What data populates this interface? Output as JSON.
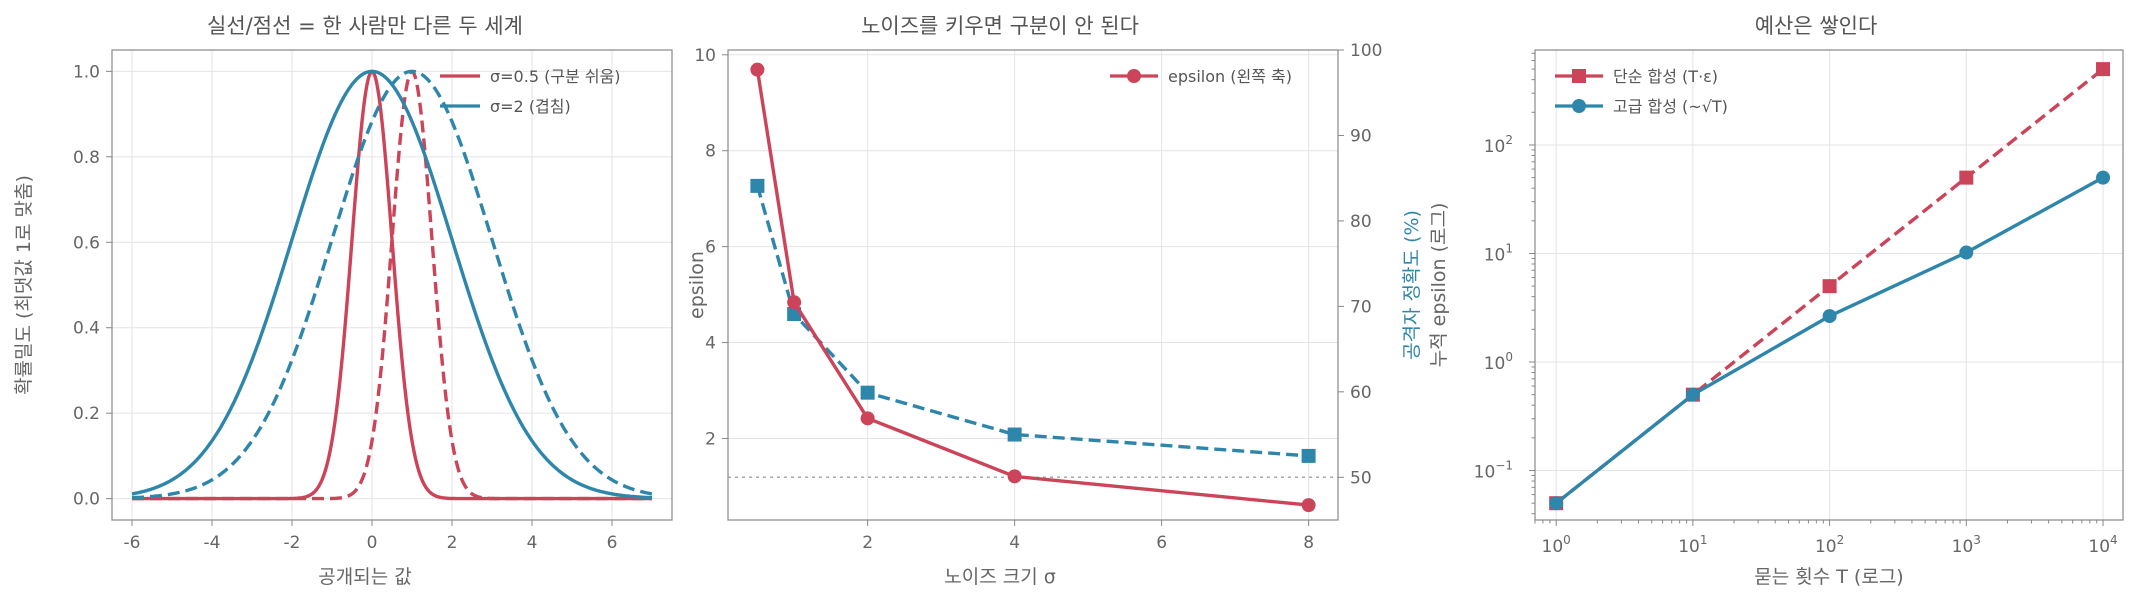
{
  "colors": {
    "red": "#cc4459",
    "blue": "#2e86ab",
    "grid": "#e4e4e4",
    "axis": "#888888",
    "text": "#666666"
  },
  "chart_data": [
    {
      "type": "line",
      "title": "실선/점선 = 한 사람만 다른 두 세계",
      "xlabel": "공개되는 값",
      "ylabel": "확률밀도 (최댓값 1로 맞춤)",
      "xlim": [
        -6.5,
        7.5
      ],
      "ylim": [
        -0.05,
        1.05
      ],
      "xticks": [
        -6,
        -4,
        -2,
        0,
        2,
        4,
        6
      ],
      "xtick_labels": [
        "-6",
        "-4",
        "-2",
        "0",
        "2",
        "4",
        "6"
      ],
      "yticks": [
        0.0,
        0.2,
        0.4,
        0.6,
        0.8,
        1.0
      ],
      "ytick_labels": [
        "0.0",
        "0.2",
        "0.4",
        "0.6",
        "0.8",
        "1.0"
      ],
      "grid": true,
      "legend_position": "top-right",
      "legend": [
        "σ=0.5 (구분 쉬움)",
        "σ=2 (겹침)"
      ],
      "curve_domain": [
        -6,
        7
      ],
      "series": [
        {
          "name": "σ=0.5 (구분 쉬움)",
          "sigma": 0.5,
          "mean": 0,
          "style": "solid",
          "color": "#cc4459"
        },
        {
          "sigma": 0.5,
          "mean": 1,
          "style": "dashed",
          "color": "#cc4459"
        },
        {
          "name": "σ=2 (겹침)",
          "sigma": 2,
          "mean": 0,
          "style": "solid",
          "color": "#2e86ab"
        },
        {
          "sigma": 2,
          "mean": 1,
          "style": "dashed",
          "color": "#2e86ab"
        }
      ]
    },
    {
      "type": "line",
      "title": "노이즈를 키우면 구분이 안 된다",
      "xlabel": "노이즈 크기 σ",
      "ylabel": "epsilon",
      "ylabel_right": "공격자 정확도 (%)",
      "xlim": [
        0.1,
        8.4
      ],
      "ylim": [
        0.3,
        10.1
      ],
      "ylim_right": [
        45,
        100
      ],
      "xticks": [
        2,
        4,
        6,
        8
      ],
      "xtick_labels": [
        "2",
        "4",
        "6",
        "8"
      ],
      "yticks": [
        2,
        4,
        6,
        8,
        10
      ],
      "ytick_labels": [
        "2",
        "4",
        "6",
        "8",
        "10"
      ],
      "yticks_right": [
        50,
        60,
        70,
        80,
        90,
        100
      ],
      "ytick_right_labels": [
        "50",
        "60",
        "70",
        "80",
        "90",
        "100"
      ],
      "grid": true,
      "legend_position": "top-right",
      "legend": [
        "epsilon (왼쪽 축)"
      ],
      "reference_line_right": 50,
      "series": [
        {
          "name": "epsilon (왼쪽 축)",
          "axis": "left",
          "x": [
            0.5,
            1,
            2,
            4,
            8
          ],
          "y": [
            9.69,
            4.84,
            2.42,
            1.21,
            0.61
          ],
          "style": "solid",
          "marker": "circle",
          "color": "#cc4459"
        },
        {
          "axis": "right",
          "x": [
            0.5,
            1,
            2,
            4,
            8
          ],
          "y": [
            84.1,
            69.1,
            59.9,
            55.0,
            52.5
          ],
          "style": "dashed",
          "marker": "square",
          "color": "#2e86ab"
        }
      ]
    },
    {
      "type": "line",
      "title": "예산은 쌓인다",
      "xlabel": "묻는 횟수 T (로그)",
      "ylabel": "누적 epsilon (로그)",
      "xscale": "log",
      "yscale": "log",
      "xlim": [
        0.7,
        14000
      ],
      "ylim": [
        0.035,
        750
      ],
      "xticks": [
        1,
        10,
        100,
        1000,
        10000
      ],
      "xtick_labels": [
        [
          "10",
          "0"
        ],
        [
          "10",
          "1"
        ],
        [
          "10",
          "2"
        ],
        [
          "10",
          "3"
        ],
        [
          "10",
          "4"
        ]
      ],
      "yticks": [
        0.1,
        1,
        10,
        100
      ],
      "ytick_labels": [
        [
          "10",
          "−1"
        ],
        [
          "10",
          "0"
        ],
        [
          "10",
          "1"
        ],
        [
          "10",
          "2"
        ]
      ],
      "grid": true,
      "legend_position": "top-left",
      "legend": [
        "단순 합성 (T·ε)",
        "고급 합성 (~√T)"
      ],
      "series": [
        {
          "name": "단순 합성 (T·ε)",
          "x": [
            1,
            10,
            100,
            1000,
            10000
          ],
          "y": [
            0.05,
            0.5,
            5,
            50,
            500
          ],
          "style": "dashed",
          "marker": "square",
          "color": "#cc4459"
        },
        {
          "name": "고급 합성 (~√T)",
          "x": [
            1,
            10,
            100,
            1000,
            10000
          ],
          "y": [
            0.05,
            0.5,
            2.65,
            10.2,
            50
          ],
          "style": "solid",
          "marker": "circle",
          "color": "#2e86ab"
        }
      ]
    }
  ]
}
